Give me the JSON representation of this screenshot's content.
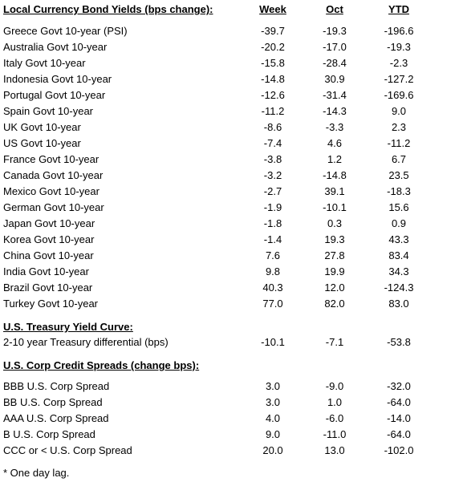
{
  "local_currency": {
    "title": "Local Currency Bond Yields (bps change):",
    "columns": [
      "Week",
      "Oct",
      "YTD"
    ],
    "rows": [
      {
        "label": "Greece Govt 10-year (PSI)",
        "week": "-39.7",
        "oct": "-19.3",
        "ytd": "-196.6"
      },
      {
        "label": "Australia Govt 10-year",
        "week": "-20.2",
        "oct": "-17.0",
        "ytd": "-19.3"
      },
      {
        "label": "Italy Govt 10-year",
        "week": "-15.8",
        "oct": "-28.4",
        "ytd": "-2.3"
      },
      {
        "label": "Indonesia Govt 10-year",
        "week": "-14.8",
        "oct": "30.9",
        "ytd": "-127.2"
      },
      {
        "label": "Portugal Govt 10-year",
        "week": "-12.6",
        "oct": "-31.4",
        "ytd": "-169.6"
      },
      {
        "label": "Spain Govt 10-year",
        "week": "-11.2",
        "oct": "-14.3",
        "ytd": "9.0"
      },
      {
        "label": "UK Govt 10-year",
        "week": "-8.6",
        "oct": "-3.3",
        "ytd": "2.3"
      },
      {
        "label": "US Govt 10-year",
        "week": "-7.4",
        "oct": "4.6",
        "ytd": "-11.2"
      },
      {
        "label": "France Govt 10-year",
        "week": "-3.8",
        "oct": "1.2",
        "ytd": "6.7"
      },
      {
        "label": "Canada Govt 10-year",
        "week": "-3.2",
        "oct": "-14.8",
        "ytd": "23.5"
      },
      {
        "label": "Mexico Govt 10-year",
        "week": "-2.7",
        "oct": "39.1",
        "ytd": "-18.3"
      },
      {
        "label": "German Govt 10-year",
        "week": "-1.9",
        "oct": "-10.1",
        "ytd": "15.6"
      },
      {
        "label": "Japan Govt 10-year",
        "week": "-1.8",
        "oct": "0.3",
        "ytd": "0.9"
      },
      {
        "label": "Korea Govt 10-year",
        "week": "-1.4",
        "oct": "19.3",
        "ytd": "43.3"
      },
      {
        "label": "China Govt 10-year",
        "week": "7.6",
        "oct": "27.8",
        "ytd": "83.4"
      },
      {
        "label": "India Govt 10-year",
        "week": "9.8",
        "oct": "19.9",
        "ytd": "34.3"
      },
      {
        "label": "Brazil Govt 10-year",
        "week": "40.3",
        "oct": "12.0",
        "ytd": "-124.3"
      },
      {
        "label": "Turkey Govt 10-year",
        "week": "77.0",
        "oct": "82.0",
        "ytd": "83.0"
      }
    ]
  },
  "treasury_curve": {
    "title": "U.S. Treasury Yield Curve:",
    "rows": [
      {
        "label": "2-10 year Treasury differential (bps)",
        "week": "-10.1",
        "oct": "-7.1",
        "ytd": "-53.8"
      }
    ]
  },
  "corp_spreads": {
    "title": "U.S. Corp Credit Spreads (change bps):",
    "rows": [
      {
        "label": "BBB U.S. Corp Spread",
        "week": "3.0",
        "oct": "-9.0",
        "ytd": "-32.0"
      },
      {
        "label": "BB U.S. Corp Spread",
        "week": "3.0",
        "oct": "1.0",
        "ytd": "-64.0"
      },
      {
        "label": "AAA U.S. Corp Spread",
        "week": "4.0",
        "oct": "-6.0",
        "ytd": "-14.0"
      },
      {
        "label": "B U.S. Corp Spread",
        "week": "9.0",
        "oct": "-11.0",
        "ytd": "-64.0"
      },
      {
        "label": "CCC or < U.S. Corp Spread",
        "week": "20.0",
        "oct": "13.0",
        "ytd": "-102.0"
      }
    ]
  },
  "footnote": "* One day lag."
}
